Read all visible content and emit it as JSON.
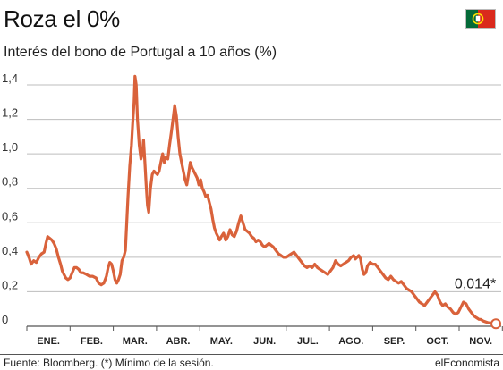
{
  "header": {
    "title": "Roza el 0%",
    "subtitle": "Interés del bono de Portugal a 10 años (%)"
  },
  "flag": {
    "icon": "portugal-flag-icon",
    "green": "#046a38",
    "red": "#da291c",
    "yellow": "#ffe000"
  },
  "footer": {
    "source": "Fuente: Bloomberg. (*) Mínimo de la sesión.",
    "brand": "elEconomista"
  },
  "colors": {
    "line": "#d9623b",
    "grid": "#bdbdbd",
    "axis": "#555555"
  },
  "chart_data": {
    "type": "line",
    "title": "Roza el 0%",
    "subtitle": "Interés del bono de Portugal a 10 años (%)",
    "xlabel": "",
    "ylabel": "",
    "x_range": [
      0,
      11
    ],
    "ylim": [
      0,
      1.4
    ],
    "grid": "horizontal",
    "y_ticks": [
      0,
      0.2,
      0.4,
      0.6,
      0.8,
      1.0,
      1.2,
      1.4
    ],
    "y_tick_labels": [
      "0",
      "0,2",
      "0,4",
      "0,6",
      "0,8",
      "1,0",
      "1,2",
      "1,4"
    ],
    "months": [
      "ENE.",
      "FEB.",
      "MAR.",
      "ABR.",
      "MAY.",
      "JUN.",
      "JUL.",
      "AGO.",
      "SEP.",
      "OCT.",
      "NOV."
    ],
    "series": [
      {
        "points": [
          [
            0.0,
            0.43
          ],
          [
            0.05,
            0.4
          ],
          [
            0.1,
            0.36
          ],
          [
            0.16,
            0.38
          ],
          [
            0.22,
            0.37
          ],
          [
            0.28,
            0.4
          ],
          [
            0.34,
            0.42
          ],
          [
            0.4,
            0.43
          ],
          [
            0.44,
            0.48
          ],
          [
            0.48,
            0.52
          ],
          [
            0.53,
            0.51
          ],
          [
            0.58,
            0.5
          ],
          [
            0.63,
            0.48
          ],
          [
            0.68,
            0.45
          ],
          [
            0.73,
            0.4
          ],
          [
            0.78,
            0.36
          ],
          [
            0.82,
            0.32
          ],
          [
            0.86,
            0.3
          ],
          [
            0.9,
            0.28
          ],
          [
            0.95,
            0.27
          ],
          [
            1.0,
            0.28
          ],
          [
            1.05,
            0.31
          ],
          [
            1.1,
            0.34
          ],
          [
            1.15,
            0.34
          ],
          [
            1.2,
            0.33
          ],
          [
            1.25,
            0.31
          ],
          [
            1.3,
            0.31
          ],
          [
            1.38,
            0.3
          ],
          [
            1.45,
            0.29
          ],
          [
            1.52,
            0.29
          ],
          [
            1.6,
            0.28
          ],
          [
            1.66,
            0.25
          ],
          [
            1.72,
            0.24
          ],
          [
            1.78,
            0.25
          ],
          [
            1.84,
            0.29
          ],
          [
            1.88,
            0.34
          ],
          [
            1.92,
            0.37
          ],
          [
            1.96,
            0.36
          ],
          [
            2.0,
            0.32
          ],
          [
            2.04,
            0.27
          ],
          [
            2.08,
            0.25
          ],
          [
            2.12,
            0.27
          ],
          [
            2.16,
            0.3
          ],
          [
            2.2,
            0.38
          ],
          [
            2.24,
            0.4
          ],
          [
            2.28,
            0.44
          ],
          [
            2.31,
            0.6
          ],
          [
            2.34,
            0.75
          ],
          [
            2.38,
            0.93
          ],
          [
            2.42,
            1.05
          ],
          [
            2.45,
            1.18
          ],
          [
            2.48,
            1.3
          ],
          [
            2.5,
            1.45
          ],
          [
            2.53,
            1.4
          ],
          [
            2.56,
            1.2
          ],
          [
            2.6,
            1.05
          ],
          [
            2.64,
            0.97
          ],
          [
            2.67,
            1.0
          ],
          [
            2.7,
            1.08
          ],
          [
            2.73,
            0.95
          ],
          [
            2.76,
            0.82
          ],
          [
            2.79,
            0.7
          ],
          [
            2.82,
            0.66
          ],
          [
            2.86,
            0.8
          ],
          [
            2.9,
            0.88
          ],
          [
            2.94,
            0.9
          ],
          [
            2.98,
            0.89
          ],
          [
            3.02,
            0.88
          ],
          [
            3.06,
            0.9
          ],
          [
            3.1,
            0.95
          ],
          [
            3.14,
            1.0
          ],
          [
            3.18,
            0.95
          ],
          [
            3.22,
            0.98
          ],
          [
            3.26,
            0.97
          ],
          [
            3.3,
            1.05
          ],
          [
            3.34,
            1.12
          ],
          [
            3.38,
            1.2
          ],
          [
            3.42,
            1.28
          ],
          [
            3.46,
            1.22
          ],
          [
            3.5,
            1.1
          ],
          [
            3.54,
            1.0
          ],
          [
            3.58,
            0.95
          ],
          [
            3.62,
            0.9
          ],
          [
            3.66,
            0.85
          ],
          [
            3.7,
            0.82
          ],
          [
            3.74,
            0.88
          ],
          [
            3.78,
            0.95
          ],
          [
            3.82,
            0.92
          ],
          [
            3.86,
            0.9
          ],
          [
            3.9,
            0.88
          ],
          [
            3.94,
            0.86
          ],
          [
            3.98,
            0.82
          ],
          [
            4.02,
            0.85
          ],
          [
            4.06,
            0.8
          ],
          [
            4.1,
            0.78
          ],
          [
            4.14,
            0.75
          ],
          [
            4.18,
            0.76
          ],
          [
            4.22,
            0.72
          ],
          [
            4.26,
            0.68
          ],
          [
            4.3,
            0.62
          ],
          [
            4.34,
            0.57
          ],
          [
            4.38,
            0.54
          ],
          [
            4.42,
            0.52
          ],
          [
            4.46,
            0.5
          ],
          [
            4.5,
            0.52
          ],
          [
            4.55,
            0.54
          ],
          [
            4.6,
            0.5
          ],
          [
            4.65,
            0.52
          ],
          [
            4.7,
            0.56
          ],
          [
            4.75,
            0.53
          ],
          [
            4.8,
            0.52
          ],
          [
            4.85,
            0.55
          ],
          [
            4.9,
            0.6
          ],
          [
            4.95,
            0.64
          ],
          [
            5.0,
            0.6
          ],
          [
            5.05,
            0.56
          ],
          [
            5.1,
            0.55
          ],
          [
            5.15,
            0.54
          ],
          [
            5.2,
            0.52
          ],
          [
            5.25,
            0.51
          ],
          [
            5.3,
            0.49
          ],
          [
            5.35,
            0.5
          ],
          [
            5.4,
            0.49
          ],
          [
            5.45,
            0.47
          ],
          [
            5.5,
            0.46
          ],
          [
            5.55,
            0.47
          ],
          [
            5.6,
            0.48
          ],
          [
            5.65,
            0.47
          ],
          [
            5.7,
            0.46
          ],
          [
            5.76,
            0.44
          ],
          [
            5.82,
            0.42
          ],
          [
            5.88,
            0.41
          ],
          [
            5.94,
            0.4
          ],
          [
            6.0,
            0.4
          ],
          [
            6.06,
            0.41
          ],
          [
            6.12,
            0.42
          ],
          [
            6.18,
            0.43
          ],
          [
            6.24,
            0.41
          ],
          [
            6.3,
            0.39
          ],
          [
            6.36,
            0.37
          ],
          [
            6.42,
            0.35
          ],
          [
            6.48,
            0.34
          ],
          [
            6.54,
            0.35
          ],
          [
            6.6,
            0.34
          ],
          [
            6.66,
            0.36
          ],
          [
            6.72,
            0.34
          ],
          [
            6.78,
            0.33
          ],
          [
            6.84,
            0.32
          ],
          [
            6.9,
            0.31
          ],
          [
            6.96,
            0.3
          ],
          [
            7.02,
            0.32
          ],
          [
            7.08,
            0.34
          ],
          [
            7.14,
            0.38
          ],
          [
            7.2,
            0.36
          ],
          [
            7.26,
            0.35
          ],
          [
            7.32,
            0.36
          ],
          [
            7.38,
            0.37
          ],
          [
            7.44,
            0.38
          ],
          [
            7.5,
            0.4
          ],
          [
            7.56,
            0.41
          ],
          [
            7.6,
            0.39
          ],
          [
            7.64,
            0.4
          ],
          [
            7.68,
            0.41
          ],
          [
            7.72,
            0.39
          ],
          [
            7.76,
            0.33
          ],
          [
            7.8,
            0.3
          ],
          [
            7.84,
            0.31
          ],
          [
            7.88,
            0.35
          ],
          [
            7.94,
            0.37
          ],
          [
            8.0,
            0.36
          ],
          [
            8.06,
            0.36
          ],
          [
            8.12,
            0.34
          ],
          [
            8.18,
            0.32
          ],
          [
            8.24,
            0.3
          ],
          [
            8.3,
            0.28
          ],
          [
            8.36,
            0.27
          ],
          [
            8.42,
            0.29
          ],
          [
            8.48,
            0.27
          ],
          [
            8.54,
            0.26
          ],
          [
            8.6,
            0.25
          ],
          [
            8.66,
            0.26
          ],
          [
            8.72,
            0.24
          ],
          [
            8.78,
            0.22
          ],
          [
            8.84,
            0.21
          ],
          [
            8.9,
            0.2
          ],
          [
            8.96,
            0.18
          ],
          [
            9.02,
            0.16
          ],
          [
            9.08,
            0.14
          ],
          [
            9.14,
            0.13
          ],
          [
            9.2,
            0.12
          ],
          [
            9.26,
            0.14
          ],
          [
            9.32,
            0.16
          ],
          [
            9.38,
            0.18
          ],
          [
            9.44,
            0.2
          ],
          [
            9.5,
            0.18
          ],
          [
            9.56,
            0.14
          ],
          [
            9.62,
            0.12
          ],
          [
            9.68,
            0.13
          ],
          [
            9.74,
            0.11
          ],
          [
            9.8,
            0.1
          ],
          [
            9.86,
            0.08
          ],
          [
            9.92,
            0.07
          ],
          [
            9.98,
            0.08
          ],
          [
            10.04,
            0.11
          ],
          [
            10.1,
            0.14
          ],
          [
            10.16,
            0.13
          ],
          [
            10.22,
            0.1
          ],
          [
            10.28,
            0.08
          ],
          [
            10.34,
            0.06
          ],
          [
            10.4,
            0.05
          ],
          [
            10.46,
            0.04
          ],
          [
            10.5,
            0.04
          ],
          [
            10.56,
            0.03
          ],
          [
            10.62,
            0.025
          ],
          [
            10.68,
            0.02
          ],
          [
            10.74,
            0.018
          ],
          [
            10.8,
            0.016
          ],
          [
            10.85,
            0.014
          ]
        ]
      }
    ],
    "annotation": {
      "label": "0,014*",
      "x": 10.85,
      "y": 0.014
    }
  }
}
